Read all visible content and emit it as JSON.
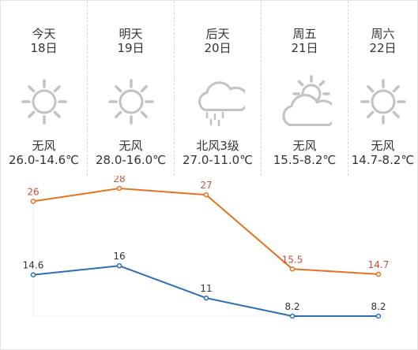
{
  "days": [
    {
      "name": "今天",
      "date": "18日",
      "icon": "sun-icon",
      "wind": "无风",
      "temp": "26.0-14.6℃"
    },
    {
      "name": "明天",
      "date": "19日",
      "icon": "sun-icon",
      "wind": "无风",
      "temp": "28.0-16.0℃"
    },
    {
      "name": "后天",
      "date": "20日",
      "icon": "rain-cloud-icon",
      "wind": "北风3级",
      "temp": "27.0-11.0℃"
    },
    {
      "name": "周五",
      "date": "21日",
      "icon": "partly-cloudy-icon",
      "wind": "无风",
      "temp": "15.5-8.2℃"
    },
    {
      "name": "周六",
      "date": "22日",
      "icon": "sun-icon",
      "wind": "无风",
      "temp": "14.7-8.2℃"
    }
  ],
  "colors": {
    "high": "#e8711c",
    "low": "#2c6fb3",
    "high_label": "#c8503a",
    "low_label": "#333333",
    "icon": "#c2c2c2",
    "grid": "#eeeeee"
  },
  "chart_data": {
    "type": "line",
    "x": [
      "18日",
      "19日",
      "20日",
      "21日",
      "22日"
    ],
    "series": [
      {
        "values": [
          26,
          28,
          27,
          15.5,
          14.7
        ],
        "labels": [
          "26",
          "28",
          "27",
          "15.5",
          "14.7"
        ]
      },
      {
        "values": [
          14.6,
          16,
          11,
          8.2,
          8.2
        ],
        "labels": [
          "14.6",
          "16",
          "11",
          "8.2",
          "8.2"
        ]
      }
    ],
    "ylim": [
      8.2,
      28
    ]
  }
}
